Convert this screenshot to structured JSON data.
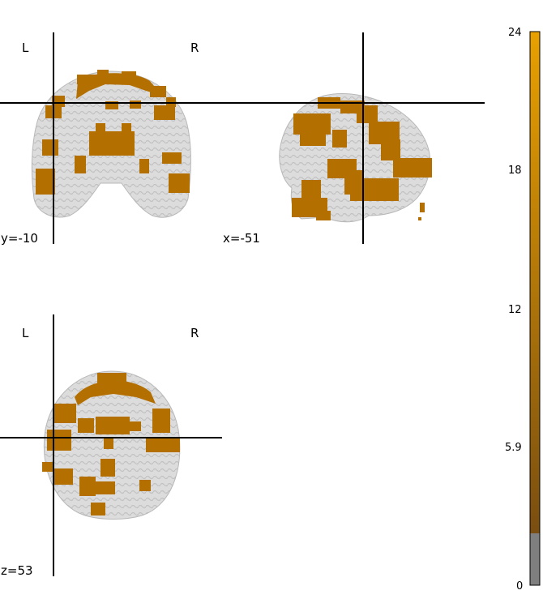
{
  "panels": {
    "coronal": {
      "left_label": "L",
      "right_label": "R",
      "coord": "y=-10"
    },
    "sagittal": {
      "coord": "x=-51"
    },
    "axial": {
      "left_label": "L",
      "right_label": "R",
      "coord": "z=53"
    }
  },
  "colorbar": {
    "ticks": [
      "24",
      "18",
      "12",
      "5.9",
      "0"
    ],
    "min": 0,
    "max": 24,
    "threshold": 2.1,
    "colors": {
      "low": "#7a4e10",
      "high": "#e8a000",
      "below_threshold": "#7f7f7f"
    }
  },
  "colors": {
    "brain": "#d9d9d9",
    "brain_shade": "#bdbdbd",
    "overlay": "#b36f00",
    "crosshair": "#000000"
  }
}
